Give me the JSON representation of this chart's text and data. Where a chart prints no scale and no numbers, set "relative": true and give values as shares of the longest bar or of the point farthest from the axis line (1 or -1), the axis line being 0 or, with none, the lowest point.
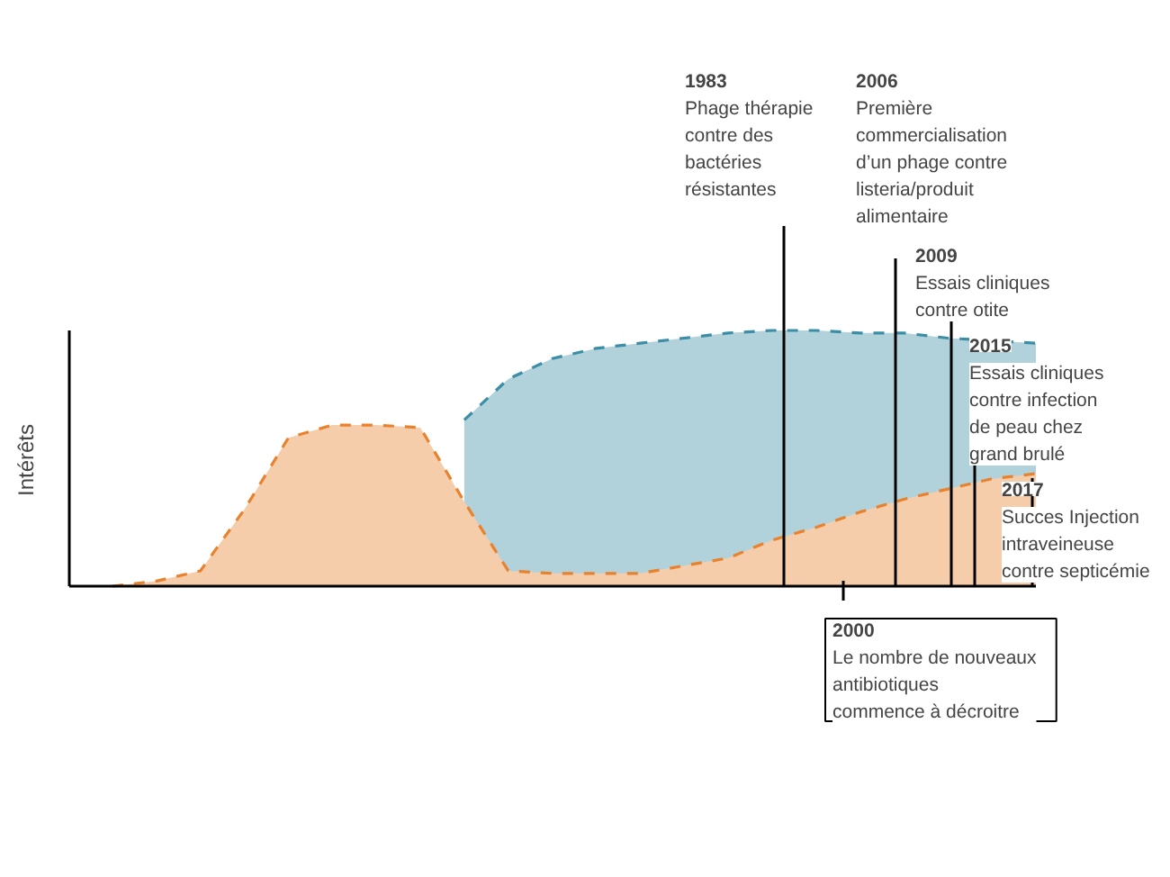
{
  "chart_data": {
    "type": "area",
    "relative": true,
    "ylabel": "Intérêts",
    "line_style": "dashed",
    "categories": [
      null,
      null,
      null,
      null,
      null,
      null,
      null,
      null,
      null,
      null,
      null,
      null,
      null,
      null,
      null,
      null,
      null,
      null,
      null,
      null,
      null,
      null
    ],
    "series": [
      {
        "color": "#3b8ea5",
        "values": [
          null,
          null,
          null,
          null,
          null,
          null,
          null,
          null,
          0.65,
          0.81,
          0.89,
          0.93,
          0.95,
          0.97,
          0.99,
          1,
          1,
          0.99,
          0.99,
          0.97,
          0.96,
          0.95
        ]
      },
      {
        "color": "#e8822e",
        "values": [
          0,
          0.02,
          0.06,
          0.3,
          0.58,
          0.63,
          0.63,
          0.62,
          0.33,
          0.06,
          0.05,
          0.05,
          0.05,
          0.08,
          0.11,
          0.18,
          0.23,
          0.29,
          0.34,
          0.38,
          0.42,
          0.44
        ]
      }
    ],
    "annotations": [
      "1983\nPhage thérapie\ncontre des\nbactéries\nrésistantes",
      "2000\nLe nombre de nouveaux\nantibiotiques\ncommence à décroitre",
      "2006\nPremière\ncommercialisation\nd’un phage contre\nlisteria/produit\nalimentaire",
      "2009\nEssais cliniques\ncontre otite",
      "2015\nEssais cliniques\ncontre infection\nde peau chez\ngrand brulé",
      "2017\nSucces Injection\nintraveineuse\ncontre septicémie"
    ]
  }
}
